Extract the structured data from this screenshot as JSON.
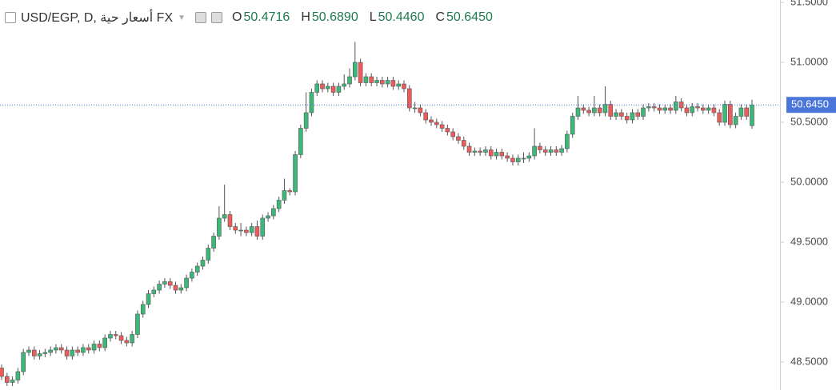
{
  "header": {
    "title": "USD/EGP, D, أسعار حية FX",
    "o_label": "O",
    "o_value": "50.4716",
    "h_label": "H",
    "h_value": "50.6890",
    "l_label": "L",
    "l_value": "50.4460",
    "c_label": "C",
    "c_value": "50.6450"
  },
  "chart_data": {
    "type": "candlestick",
    "up_color": "#3cb878",
    "down_color": "#ef5b5b",
    "wick_color": "#555555",
    "ylim": [
      48.2667,
      51.52
    ],
    "yticks": [
      {
        "value": 48.5,
        "label": "48.5000"
      },
      {
        "value": 49,
        "label": "49.0000"
      },
      {
        "value": 49.5,
        "label": "49.5000"
      },
      {
        "value": 50,
        "label": "50.0000"
      },
      {
        "value": 50.5,
        "label": "50.5000"
      },
      {
        "value": 51,
        "label": "51.0000"
      },
      {
        "value": 51.5,
        "label": "51.5000"
      }
    ],
    "price_line": {
      "value": 50.645,
      "label": "50.6450",
      "color": "#4a76d9"
    },
    "open": [
      48.45,
      48.38,
      48.33,
      48.35,
      48.42,
      48.58,
      48.6,
      48.55,
      48.57,
      48.58,
      48.6,
      48.62,
      48.6,
      48.55,
      48.6,
      48.58,
      48.62,
      48.6,
      48.65,
      48.62,
      48.7,
      48.73,
      48.72,
      48.68,
      48.66,
      48.73,
      48.9,
      48.98,
      49.07,
      49.1,
      49.15,
      49.17,
      49.14,
      49.1,
      49.12,
      49.2,
      49.25,
      49.3,
      49.35,
      49.45,
      49.55,
      49.7,
      49.73,
      49.63,
      49.6,
      49.6,
      49.58,
      49.63,
      49.55,
      49.7,
      49.72,
      49.78,
      49.85,
      49.93,
      49.92,
      50.23,
      50.45,
      50.58,
      50.75,
      50.82,
      50.78,
      50.8,
      50.75,
      50.8,
      50.82,
      50.88,
      51.0,
      50.83,
      50.88,
      50.83,
      50.85,
      50.82,
      50.85,
      50.8,
      50.82,
      50.78,
      50.62,
      50.62,
      50.58,
      50.52,
      50.5,
      50.48,
      50.45,
      50.42,
      50.38,
      50.35,
      50.3,
      50.25,
      50.26,
      50.25,
      50.27,
      50.22,
      50.25,
      50.22,
      50.2,
      50.17,
      50.2,
      50.2,
      50.22,
      50.3,
      50.27,
      50.25,
      50.27,
      50.25,
      50.28,
      50.4,
      50.55,
      50.62,
      50.6,
      50.58,
      50.62,
      50.58,
      50.65,
      50.55,
      50.58,
      50.55,
      50.52,
      50.58,
      50.55,
      50.62,
      50.63,
      50.62,
      50.6,
      50.62,
      50.6,
      50.67,
      50.62,
      50.58,
      50.63,
      50.62,
      50.6,
      50.62,
      50.58,
      50.5,
      50.65,
      50.48,
      50.55,
      50.62,
      50.4716
    ],
    "high": [
      48.48,
      48.41,
      48.38,
      48.45,
      48.61,
      48.63,
      48.63,
      48.6,
      48.61,
      48.63,
      48.65,
      48.65,
      48.63,
      48.63,
      48.63,
      48.65,
      48.65,
      48.68,
      48.68,
      48.73,
      48.76,
      48.76,
      48.75,
      48.71,
      48.76,
      48.93,
      49.01,
      49.1,
      49.13,
      49.18,
      49.2,
      49.2,
      49.17,
      49.15,
      49.23,
      49.28,
      49.33,
      49.38,
      49.48,
      49.58,
      49.8,
      49.98,
      49.76,
      49.66,
      49.66,
      49.63,
      49.66,
      49.68,
      49.73,
      49.75,
      49.81,
      49.88,
      50.03,
      49.95,
      50.26,
      50.48,
      50.75,
      50.78,
      50.85,
      50.85,
      50.83,
      50.83,
      50.83,
      50.9,
      50.95,
      51.17,
      51.03,
      50.91,
      50.91,
      50.88,
      50.88,
      50.88,
      50.88,
      50.85,
      50.85,
      50.81,
      50.67,
      50.65,
      50.61,
      50.55,
      50.53,
      50.51,
      50.48,
      50.45,
      50.41,
      50.38,
      50.33,
      50.29,
      50.29,
      50.3,
      50.3,
      50.28,
      50.28,
      50.25,
      50.23,
      50.23,
      50.25,
      50.25,
      50.45,
      50.33,
      50.3,
      50.3,
      50.3,
      50.31,
      50.43,
      50.58,
      50.72,
      50.65,
      50.63,
      50.72,
      50.65,
      50.8,
      50.68,
      50.61,
      50.61,
      50.58,
      50.61,
      50.61,
      50.65,
      50.66,
      50.66,
      50.65,
      50.65,
      50.65,
      50.72,
      50.7,
      50.65,
      50.66,
      50.66,
      50.65,
      50.65,
      50.65,
      50.61,
      50.68,
      50.68,
      50.58,
      50.65,
      50.65,
      50.689
    ],
    "low": [
      48.35,
      48.3,
      48.3,
      48.32,
      48.39,
      48.55,
      48.52,
      48.52,
      48.54,
      48.55,
      48.57,
      48.57,
      48.52,
      48.52,
      48.55,
      48.55,
      48.57,
      48.57,
      48.59,
      48.59,
      48.67,
      48.69,
      48.65,
      48.63,
      48.63,
      48.7,
      48.87,
      48.95,
      49.04,
      49.07,
      49.12,
      49.11,
      49.07,
      49.07,
      49.09,
      49.17,
      49.22,
      49.27,
      49.32,
      49.42,
      49.52,
      49.67,
      49.6,
      49.57,
      49.55,
      49.55,
      49.55,
      49.52,
      49.52,
      49.67,
      49.69,
      49.75,
      49.82,
      49.89,
      49.89,
      50.2,
      50.42,
      50.55,
      50.72,
      50.75,
      50.75,
      50.72,
      50.72,
      50.77,
      50.79,
      50.85,
      50.8,
      50.8,
      50.8,
      50.8,
      50.79,
      50.79,
      50.77,
      50.77,
      50.75,
      50.59,
      50.58,
      50.55,
      50.49,
      50.47,
      50.45,
      50.42,
      50.39,
      50.35,
      50.32,
      50.27,
      50.22,
      50.22,
      50.22,
      50.22,
      50.19,
      50.19,
      50.19,
      50.17,
      50.14,
      50.14,
      50.16,
      50.17,
      50.19,
      50.24,
      50.22,
      50.22,
      50.22,
      50.22,
      50.25,
      50.37,
      50.52,
      50.57,
      50.55,
      50.55,
      50.55,
      50.55,
      50.52,
      50.52,
      50.52,
      50.49,
      50.49,
      50.52,
      50.52,
      50.59,
      50.59,
      50.57,
      50.57,
      50.57,
      50.57,
      50.59,
      50.55,
      50.55,
      50.59,
      50.57,
      50.57,
      50.55,
      50.47,
      50.47,
      50.45,
      50.45,
      50.52,
      50.52,
      50.446
    ],
    "close": [
      48.38,
      48.33,
      48.35,
      48.42,
      48.58,
      48.6,
      48.55,
      48.57,
      48.58,
      48.6,
      48.62,
      48.6,
      48.55,
      48.6,
      48.58,
      48.62,
      48.6,
      48.65,
      48.62,
      48.7,
      48.73,
      48.72,
      48.68,
      48.66,
      48.73,
      48.9,
      48.98,
      49.07,
      49.1,
      49.15,
      49.17,
      49.14,
      49.1,
      49.12,
      49.2,
      49.25,
      49.3,
      49.35,
      49.45,
      49.55,
      49.7,
      49.73,
      49.63,
      49.6,
      49.6,
      49.58,
      49.63,
      49.55,
      49.7,
      49.72,
      49.78,
      49.85,
      49.93,
      49.92,
      50.23,
      50.45,
      50.58,
      50.75,
      50.82,
      50.78,
      50.8,
      50.75,
      50.8,
      50.82,
      50.88,
      51.0,
      50.83,
      50.88,
      50.83,
      50.85,
      50.82,
      50.85,
      50.8,
      50.82,
      50.78,
      50.62,
      50.62,
      50.58,
      50.52,
      50.5,
      50.48,
      50.45,
      50.42,
      50.38,
      50.35,
      50.3,
      50.25,
      50.26,
      50.25,
      50.27,
      50.22,
      50.25,
      50.22,
      50.2,
      50.17,
      50.2,
      50.2,
      50.22,
      50.3,
      50.27,
      50.25,
      50.27,
      50.25,
      50.28,
      50.4,
      50.55,
      50.62,
      50.6,
      50.58,
      50.62,
      50.58,
      50.65,
      50.55,
      50.58,
      50.55,
      50.52,
      50.58,
      50.55,
      50.62,
      50.63,
      50.62,
      50.6,
      50.62,
      50.6,
      50.67,
      50.62,
      50.58,
      50.63,
      50.62,
      50.6,
      50.62,
      50.58,
      50.5,
      50.65,
      50.48,
      50.55,
      50.62,
      50.55,
      50.645
    ]
  }
}
